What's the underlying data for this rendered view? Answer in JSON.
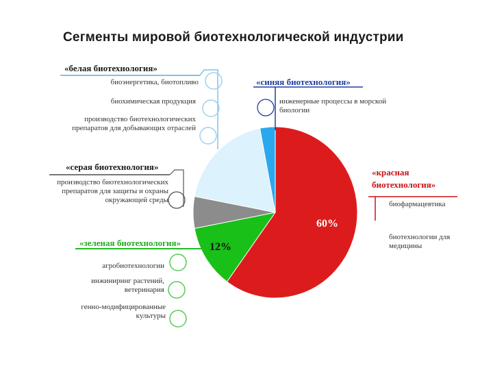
{
  "colors": {
    "red": "#dc1c1c",
    "green": "#18c018",
    "gray": "#8c8c8c",
    "white_slice": "#dcf2fc",
    "blue": "#2aa8ee",
    "line_white": "#7ec4e6",
    "line_blue": "#1e3ea0",
    "line_red": "#cc1111",
    "line_gray": "#777777",
    "line_green": "#22bb22",
    "circle_white": "#9ed0ee",
    "circle_green": "#55cc55",
    "circle_gray": "#555555"
  },
  "chart_data": {
    "type": "pie",
    "title": "Сегменты мировой биотехнологической индустрии",
    "slices": [
      {
        "key": "red",
        "name": "«красная биотехнология»",
        "value": 60,
        "label": "60%"
      },
      {
        "key": "green",
        "name": "«зеленая биотехнология»",
        "value": 12,
        "label": "12%"
      },
      {
        "key": "gray",
        "name": "«серая биотехнология»",
        "value": 6,
        "label": ""
      },
      {
        "key": "white_slice",
        "name": "«белая биотехнология»",
        "value": 19,
        "label": ""
      },
      {
        "key": "blue",
        "name": "«синяя биотехнология»",
        "value": 3,
        "label": ""
      }
    ],
    "groups": {
      "white": {
        "title": "«белая биотехнология»",
        "items": [
          "биоэнергетика, биотопливо",
          "биохимическая продукция",
          "производство биотехнологических препаратов для добывающих отраслей"
        ]
      },
      "blue": {
        "title": "«синяя биотехнология»",
        "items": [
          "инженерные процессы в морской биологии"
        ]
      },
      "red": {
        "title_line1": "«красная",
        "title_line2": "биотехнология»",
        "items": [
          "биофармацевтика",
          "биотехнологии для медицины"
        ]
      },
      "gray": {
        "title": "«серая биотехнология»",
        "items": [
          "производство биотехнологических препаратов для защиты и охраны окружающей среды"
        ]
      },
      "green": {
        "title": "«зеленая биотехнология»",
        "items": [
          "агробиотехнологии",
          "инжиниринг растений, ветеринария",
          "генно-модифицированные культуры"
        ]
      }
    }
  }
}
